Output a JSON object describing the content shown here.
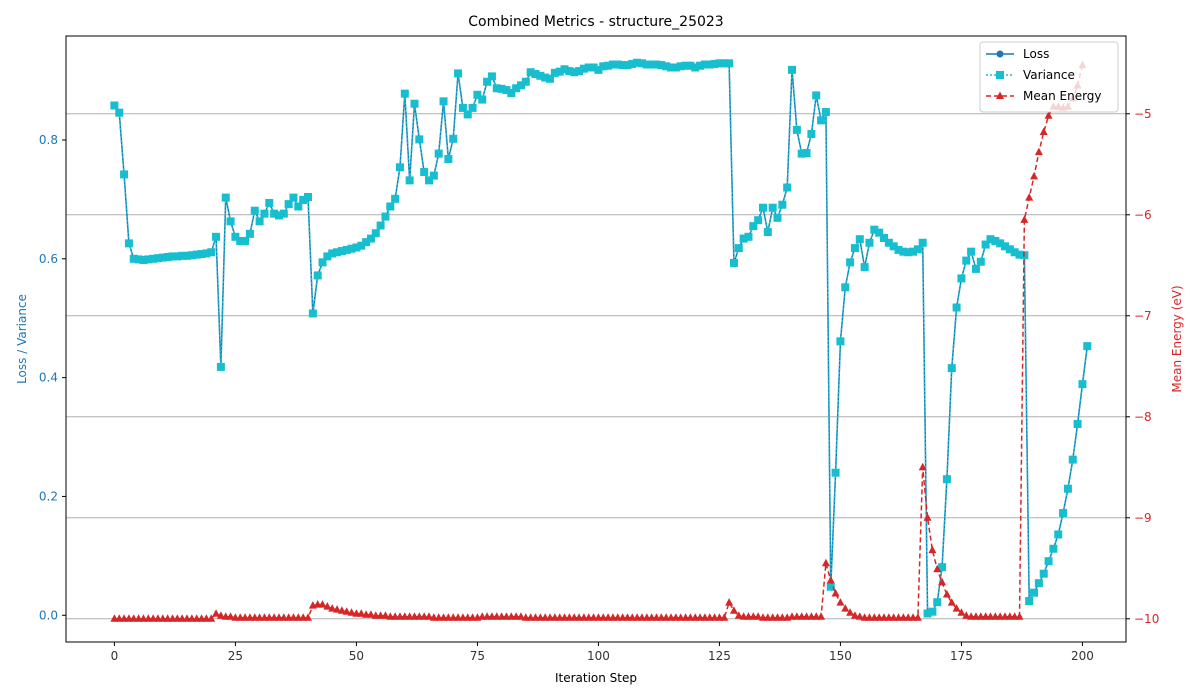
{
  "chart_data": {
    "type": "line",
    "title": "Combined Metrics - structure_25023",
    "xlabel": "Iteration Step",
    "ylabel_left": "Loss / Variance",
    "ylabel_right": "Mean Energy (eV)",
    "xlim": [
      -10,
      209
    ],
    "ylim_left": [
      -0.045,
      0.975
    ],
    "ylim_right": [
      -10.23,
      -4.23
    ],
    "x_ticks": [
      0,
      25,
      50,
      75,
      100,
      125,
      150,
      175,
      200
    ],
    "y_left_ticks": [
      0.0,
      0.2,
      0.4,
      0.6,
      0.8
    ],
    "y_right_ticks": [
      -10,
      -9,
      -8,
      -7,
      -6,
      -5
    ],
    "grid": "horizontal gridlines at right-axis ticks",
    "legend_position": "top-right",
    "colors": {
      "loss": "#1f77b4",
      "variance": "#17becf",
      "energy": "#d62728",
      "left_axis": "#1f77b4",
      "right_axis": "#d62728"
    },
    "series": [
      {
        "name": "Loss",
        "axis": "left",
        "values": [
          0.858,
          0.846,
          0.742,
          0.626,
          0.6,
          0.599,
          0.598,
          0.599,
          0.6,
          0.601,
          0.602,
          0.603,
          0.604,
          0.604,
          0.605,
          0.605,
          0.606,
          0.607,
          0.608,
          0.609,
          0.611,
          0.637,
          0.418,
          0.703,
          0.663,
          0.637,
          0.63,
          0.63,
          0.642,
          0.681,
          0.663,
          0.676,
          0.694,
          0.676,
          0.673,
          0.676,
          0.692,
          0.703,
          0.688,
          0.699,
          0.704,
          0.508,
          0.572,
          0.594,
          0.604,
          0.609,
          0.611,
          0.613,
          0.615,
          0.617,
          0.619,
          0.622,
          0.628,
          0.634,
          0.643,
          0.656,
          0.671,
          0.688,
          0.701,
          0.754,
          0.878,
          0.732,
          0.861,
          0.801,
          0.746,
          0.732,
          0.74,
          0.777,
          0.865,
          0.768,
          0.802,
          0.912,
          0.854,
          0.843,
          0.854,
          0.876,
          0.868,
          0.898,
          0.907,
          0.887,
          0.886,
          0.884,
          0.879,
          0.887,
          0.892,
          0.898,
          0.914,
          0.911,
          0.908,
          0.905,
          0.903,
          0.913,
          0.915,
          0.919,
          0.916,
          0.914,
          0.916,
          0.92,
          0.922,
          0.922,
          0.918,
          0.924,
          0.925,
          0.927,
          0.927,
          0.926,
          0.926,
          0.928,
          0.93,
          0.929,
          0.927,
          0.927,
          0.927,
          0.926,
          0.924,
          0.922,
          0.922,
          0.924,
          0.925,
          0.925,
          0.922,
          0.925,
          0.927,
          0.927,
          0.928,
          0.929,
          0.929,
          0.929,
          0.593,
          0.618,
          0.634,
          0.637,
          0.655,
          0.665,
          0.686,
          0.645,
          0.686,
          0.669,
          0.691,
          0.72,
          0.918,
          0.817,
          0.777,
          0.778,
          0.81,
          0.875,
          0.833,
          0.847,
          0.048,
          0.24,
          0.461,
          0.552,
          0.594,
          0.618,
          0.633,
          0.586,
          0.627,
          0.649,
          0.644,
          0.635,
          0.627,
          0.621,
          0.615,
          0.612,
          0.611,
          0.612,
          0.616,
          0.627,
          0.003,
          0.006,
          0.022,
          0.081,
          0.229,
          0.416,
          0.518,
          0.567,
          0.597,
          0.612,
          0.583,
          0.595,
          0.624,
          0.633,
          0.63,
          0.626,
          0.621,
          0.616,
          0.611,
          0.607,
          0.606,
          0.024,
          0.038,
          0.054,
          0.07,
          0.091,
          0.112,
          0.136,
          0.172,
          0.213,
          0.262,
          0.322,
          0.389,
          0.453
        ]
      },
      {
        "name": "Variance",
        "axis": "left",
        "values": [
          0.858,
          0.846,
          0.742,
          0.626,
          0.6,
          0.599,
          0.598,
          0.599,
          0.6,
          0.601,
          0.602,
          0.603,
          0.604,
          0.604,
          0.605,
          0.605,
          0.606,
          0.607,
          0.608,
          0.609,
          0.611,
          0.637,
          0.418,
          0.703,
          0.663,
          0.637,
          0.63,
          0.63,
          0.642,
          0.681,
          0.663,
          0.676,
          0.694,
          0.676,
          0.673,
          0.676,
          0.692,
          0.703,
          0.688,
          0.699,
          0.704,
          0.508,
          0.572,
          0.594,
          0.604,
          0.609,
          0.611,
          0.613,
          0.615,
          0.617,
          0.619,
          0.622,
          0.628,
          0.634,
          0.643,
          0.656,
          0.671,
          0.688,
          0.701,
          0.754,
          0.878,
          0.732,
          0.861,
          0.801,
          0.746,
          0.732,
          0.74,
          0.777,
          0.865,
          0.768,
          0.802,
          0.912,
          0.854,
          0.843,
          0.854,
          0.876,
          0.868,
          0.898,
          0.907,
          0.887,
          0.886,
          0.884,
          0.879,
          0.887,
          0.892,
          0.898,
          0.914,
          0.911,
          0.908,
          0.905,
          0.903,
          0.913,
          0.915,
          0.919,
          0.916,
          0.914,
          0.916,
          0.92,
          0.922,
          0.922,
          0.918,
          0.924,
          0.925,
          0.927,
          0.927,
          0.926,
          0.926,
          0.928,
          0.93,
          0.929,
          0.927,
          0.927,
          0.927,
          0.926,
          0.924,
          0.922,
          0.922,
          0.924,
          0.925,
          0.925,
          0.922,
          0.925,
          0.927,
          0.927,
          0.928,
          0.929,
          0.929,
          0.929,
          0.593,
          0.618,
          0.634,
          0.637,
          0.655,
          0.665,
          0.686,
          0.645,
          0.686,
          0.669,
          0.691,
          0.72,
          0.918,
          0.817,
          0.777,
          0.778,
          0.81,
          0.875,
          0.833,
          0.847,
          0.048,
          0.24,
          0.461,
          0.552,
          0.594,
          0.618,
          0.633,
          0.586,
          0.627,
          0.649,
          0.644,
          0.635,
          0.627,
          0.621,
          0.615,
          0.612,
          0.611,
          0.612,
          0.616,
          0.627,
          0.003,
          0.006,
          0.022,
          0.081,
          0.229,
          0.416,
          0.518,
          0.567,
          0.597,
          0.612,
          0.583,
          0.595,
          0.624,
          0.633,
          0.63,
          0.626,
          0.621,
          0.616,
          0.611,
          0.607,
          0.606,
          0.024,
          0.038,
          0.054,
          0.07,
          0.091,
          0.112,
          0.136,
          0.172,
          0.213,
          0.262,
          0.322,
          0.389,
          0.453
        ]
      },
      {
        "name": "Mean Energy",
        "axis": "right",
        "values": [
          -10.0,
          -10.0,
          -10.0,
          -10.0,
          -10.0,
          -10.0,
          -10.0,
          -10.0,
          -10.0,
          -10.0,
          -10.0,
          -10.0,
          -10.0,
          -10.0,
          -10.0,
          -10.0,
          -10.0,
          -10.0,
          -10.0,
          -10.0,
          -10.0,
          -9.95,
          -9.97,
          -9.98,
          -9.98,
          -9.99,
          -9.99,
          -9.99,
          -9.99,
          -9.99,
          -9.99,
          -9.99,
          -9.99,
          -9.99,
          -9.99,
          -9.99,
          -9.99,
          -9.99,
          -9.99,
          -9.99,
          -9.99,
          -9.87,
          -9.86,
          -9.86,
          -9.88,
          -9.9,
          -9.91,
          -9.92,
          -9.93,
          -9.94,
          -9.95,
          -9.95,
          -9.96,
          -9.96,
          -9.97,
          -9.97,
          -9.97,
          -9.98,
          -9.98,
          -9.98,
          -9.98,
          -9.98,
          -9.98,
          -9.98,
          -9.98,
          -9.98,
          -9.99,
          -9.99,
          -9.99,
          -9.99,
          -9.99,
          -9.99,
          -9.99,
          -9.99,
          -9.99,
          -9.99,
          -9.98,
          -9.98,
          -9.98,
          -9.98,
          -9.98,
          -9.98,
          -9.98,
          -9.98,
          -9.98,
          -9.99,
          -9.99,
          -9.99,
          -9.99,
          -9.99,
          -9.99,
          -9.99,
          -9.99,
          -9.99,
          -9.99,
          -9.99,
          -9.99,
          -9.99,
          -9.99,
          -9.99,
          -9.99,
          -9.99,
          -9.99,
          -9.99,
          -9.99,
          -9.99,
          -9.99,
          -9.99,
          -9.99,
          -9.99,
          -9.99,
          -9.99,
          -9.99,
          -9.99,
          -9.99,
          -9.99,
          -9.99,
          -9.99,
          -9.99,
          -9.99,
          -9.99,
          -9.99,
          -9.99,
          -9.99,
          -9.99,
          -9.99,
          -9.99,
          -9.84,
          -9.92,
          -9.97,
          -9.98,
          -9.98,
          -9.98,
          -9.98,
          -9.99,
          -9.99,
          -9.99,
          -9.99,
          -9.99,
          -9.99,
          -9.98,
          -9.98,
          -9.98,
          -9.98,
          -9.98,
          -9.98,
          -9.98,
          -9.45,
          -9.62,
          -9.75,
          -9.84,
          -9.9,
          -9.94,
          -9.97,
          -9.98,
          -9.99,
          -9.99,
          -9.99,
          -9.99,
          -9.99,
          -9.99,
          -9.99,
          -9.99,
          -9.99,
          -9.99,
          -9.99,
          -9.99,
          -8.5,
          -9.0,
          -9.32,
          -9.51,
          -9.64,
          -9.76,
          -9.84,
          -9.9,
          -9.94,
          -9.97,
          -9.98,
          -9.98,
          -9.98,
          -9.98,
          -9.98,
          -9.98,
          -9.98,
          -9.98,
          -9.98,
          -9.98,
          -9.98,
          -6.05,
          -5.83,
          -5.62,
          -5.38,
          -5.18,
          -5.02,
          -4.93,
          -4.93,
          -4.94,
          -4.93,
          -4.85,
          -4.72,
          -4.52
        ]
      }
    ]
  }
}
